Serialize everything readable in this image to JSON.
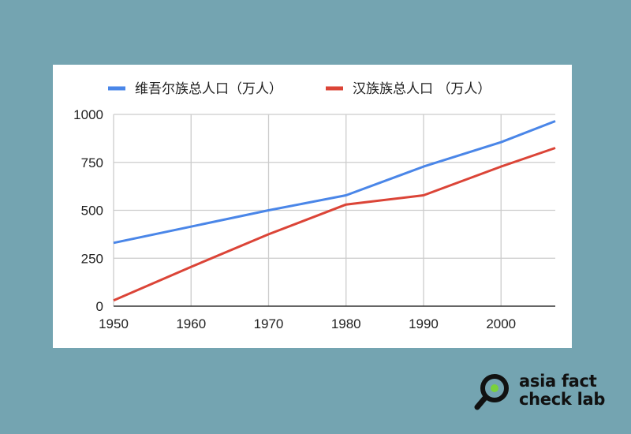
{
  "chart_data": {
    "type": "line",
    "x": [
      1950,
      1960,
      1970,
      1980,
      1990,
      2000,
      2007
    ],
    "xticks": [
      "1950",
      "1960",
      "1970",
      "1980",
      "1990",
      "2000"
    ],
    "xlim": [
      1950,
      2007
    ],
    "yticks": [
      "0",
      "250",
      "500",
      "750",
      "1000"
    ],
    "ylim": [
      0,
      1000
    ],
    "grid": true,
    "legend_position": "top",
    "series": [
      {
        "name": "维吾尔族总人口（万人）",
        "color": "#4a86e8",
        "values": [
          330,
          415,
          500,
          578,
          728,
          855,
          965
        ]
      },
      {
        "name": "汉族族总人口 （万人）",
        "color": "#db4437",
        "values": [
          30,
          205,
          375,
          530,
          578,
          728,
          825
        ]
      }
    ]
  },
  "logo": {
    "line1": "asia fact",
    "line2": "check lab",
    "ring_color": "#111111",
    "dot_color": "#7ad13b"
  }
}
